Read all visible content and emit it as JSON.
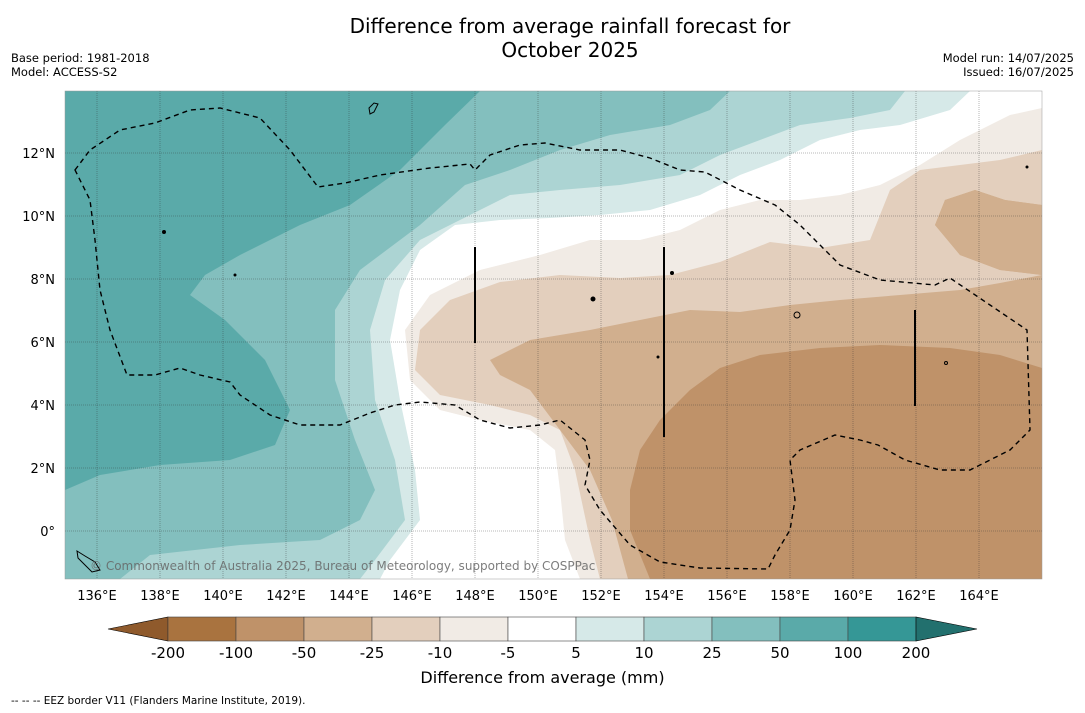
{
  "title_line1": "Difference from average rainfall forecast for",
  "title_line2": "October 2025",
  "meta_left": [
    "Base period: 1981-2018",
    "Model: ACCESS-S2"
  ],
  "meta_right": [
    "Model run: 14/07/2025",
    "Issued: 16/07/2025"
  ],
  "lon_labels": [
    "136°E",
    "138°E",
    "140°E",
    "142°E",
    "144°E",
    "146°E",
    "148°E",
    "150°E",
    "152°E",
    "154°E",
    "156°E",
    "158°E",
    "160°E",
    "162°E",
    "164°E"
  ],
  "lat_labels": [
    "12°N",
    "10°N",
    "8°N",
    "6°N",
    "4°N",
    "2°N",
    "0°"
  ],
  "copyright": "© Commonwealth of Australia 2025, Bureau of Meteorology, supported by COSPPac",
  "colorbar": {
    "ticks": [
      "-200",
      "-100",
      "-50",
      "-25",
      "-10",
      "-5",
      "5",
      "10",
      "25",
      "50",
      "100",
      "200"
    ],
    "colors": [
      "#a9733f",
      "#bf9269",
      "#d1af8e",
      "#e3cfbd",
      "#f1ebe5",
      "#ffffff",
      "#d6e9e8",
      "#acd4d3",
      "#83bfbe",
      "#5aaaa9",
      "#359796"
    ],
    "under_color": "#8f5a2c",
    "over_color": "#22706e",
    "label": "Difference from average (mm)"
  },
  "footer": "--  --  -- EEZ border V11 (Flanders Marine Institute, 2019)."
}
